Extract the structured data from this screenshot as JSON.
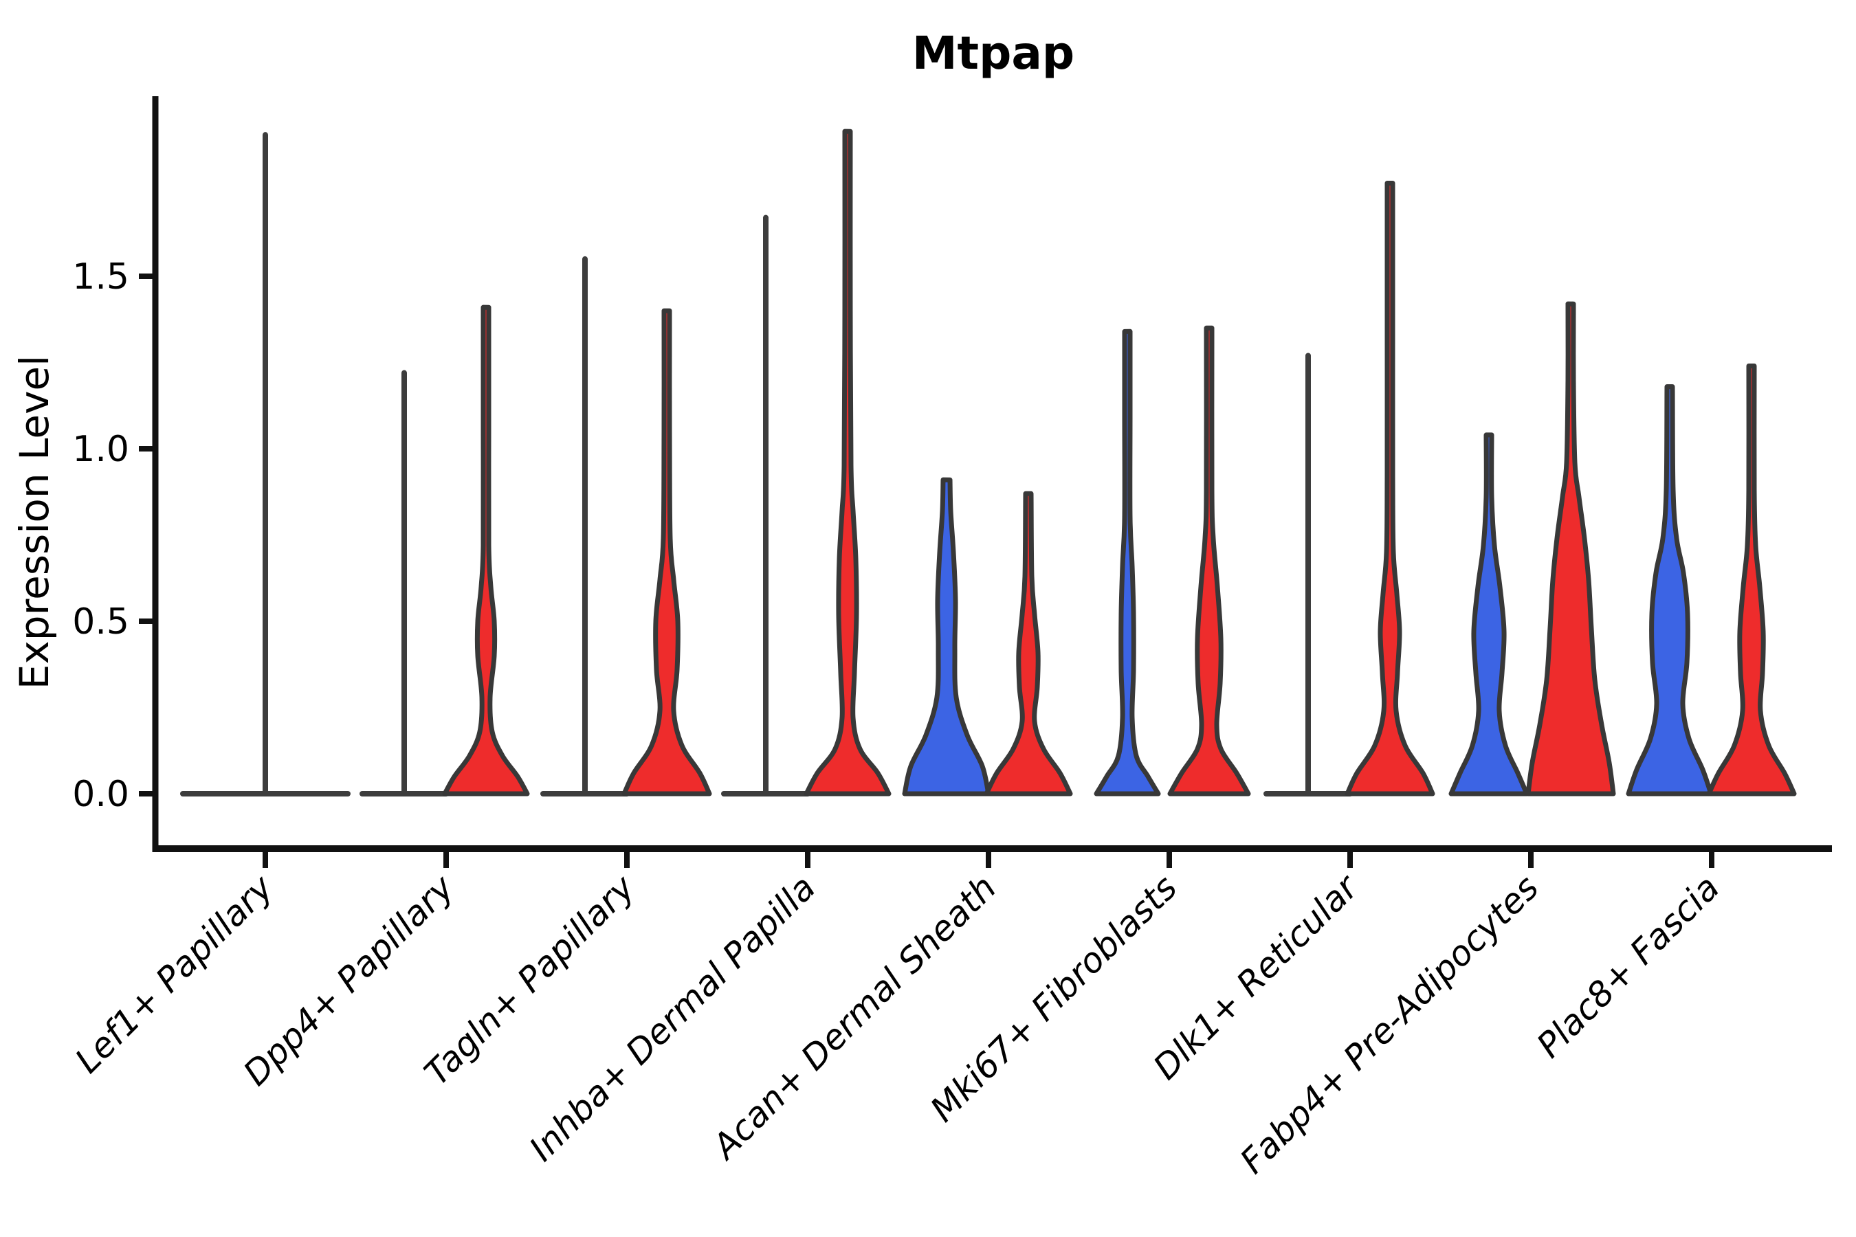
{
  "title": "Mtpap",
  "y_axis": {
    "label": "Expression Level",
    "tick_labels": [
      "0.0",
      "0.5",
      "1.0",
      "1.5"
    ],
    "tick_values": [
      0,
      0.5,
      1.0,
      1.5
    ]
  },
  "x_axis": {
    "categories": [
      "Lef1+ Papillary",
      "Dpp4+ Papillary",
      "Tagln+ Papillary",
      "Inhba+ Dermal Papilla",
      "Acan+ Dermal Sheath",
      "Mki67+ Fibroblasts",
      "Dlk1+ Reticular",
      "Fabp4+ Pre-Adipocytes",
      "Plac8+ Fascia"
    ]
  },
  "colors": {
    "red": "#EE2C2C",
    "blue": "#3C64E4",
    "outline": "#383838",
    "collapsed_line": "#3d3d3d",
    "axis": "#111111",
    "text": "#000000"
  },
  "chart_data": {
    "type": "violin",
    "title": "Mtpap",
    "ylabel": "Expression Level",
    "ylim": [
      0,
      2.0
    ],
    "yticks": [
      0,
      0.5,
      1.0,
      1.5
    ],
    "grid": false,
    "legend": "none",
    "categories": [
      "Lef1+ Papillary",
      "Dpp4+ Papillary",
      "Tagln+ Papillary",
      "Inhba+ Dermal Papilla",
      "Acan+ Dermal Sheath",
      "Mki67+ Fibroblasts",
      "Dlk1+ Reticular",
      "Fabp4+ Pre-Adipocytes",
      "Plac8+ Fascia"
    ],
    "violins": [
      {
        "category": "Lef1+ Papillary",
        "slot": "center",
        "fill": "none",
        "shape": "collapsed",
        "base_half": 120,
        "max_expression": 1.91
      },
      {
        "category": "Dpp4+ Papillary",
        "slot": "left",
        "fill": "none",
        "shape": "collapsed",
        "base_half": 61,
        "max_expression": 1.22
      },
      {
        "category": "Dpp4+ Papillary",
        "slot": "right",
        "fill": "red",
        "shape": "violin",
        "max_expression": 1.41,
        "profile": [
          [
            0,
            60
          ],
          [
            0.05,
            46
          ],
          [
            0.11,
            24
          ],
          [
            0.18,
            9
          ],
          [
            0.28,
            6
          ],
          [
            0.4,
            12
          ],
          [
            0.5,
            12
          ],
          [
            0.6,
            7
          ],
          [
            0.72,
            4
          ],
          [
            1.05,
            4
          ],
          [
            1.41,
            4
          ]
        ]
      },
      {
        "category": "Tagln+ Papillary",
        "slot": "left",
        "fill": "none",
        "shape": "collapsed",
        "base_half": 61,
        "max_expression": 1.55
      },
      {
        "category": "Tagln+ Papillary",
        "slot": "right",
        "fill": "red",
        "shape": "violin",
        "max_expression": 1.4,
        "profile": [
          [
            0,
            62
          ],
          [
            0.06,
            48
          ],
          [
            0.14,
            22
          ],
          [
            0.24,
            10
          ],
          [
            0.36,
            15
          ],
          [
            0.5,
            16
          ],
          [
            0.62,
            10
          ],
          [
            0.74,
            5
          ],
          [
            1.05,
            4
          ],
          [
            1.4,
            4
          ]
        ]
      },
      {
        "category": "Inhba+ Dermal Papilla",
        "slot": "left",
        "fill": "none",
        "shape": "collapsed",
        "base_half": 61,
        "max_expression": 1.67
      },
      {
        "category": "Inhba+ Dermal Papilla",
        "slot": "right",
        "fill": "red",
        "shape": "violin",
        "max_expression": 1.92,
        "profile": [
          [
            0,
            60
          ],
          [
            0.06,
            44
          ],
          [
            0.13,
            18
          ],
          [
            0.22,
            8
          ],
          [
            0.35,
            10
          ],
          [
            0.52,
            13
          ],
          [
            0.68,
            12
          ],
          [
            0.82,
            8
          ],
          [
            0.95,
            5
          ],
          [
            1.4,
            4
          ],
          [
            1.92,
            4
          ]
        ]
      },
      {
        "category": "Acan+ Dermal Sheath",
        "slot": "left",
        "fill": "blue",
        "shape": "violin",
        "max_expression": 0.91,
        "profile": [
          [
            0,
            61
          ],
          [
            0.08,
            52
          ],
          [
            0.17,
            30
          ],
          [
            0.28,
            14
          ],
          [
            0.42,
            12
          ],
          [
            0.56,
            13
          ],
          [
            0.7,
            10
          ],
          [
            0.82,
            6
          ],
          [
            0.91,
            5
          ]
        ]
      },
      {
        "category": "Acan+ Dermal Sheath",
        "slot": "right",
        "fill": "red",
        "shape": "violin",
        "max_expression": 0.87,
        "profile": [
          [
            0,
            61
          ],
          [
            0.06,
            46
          ],
          [
            0.13,
            22
          ],
          [
            0.21,
            9
          ],
          [
            0.31,
            13
          ],
          [
            0.41,
            14
          ],
          [
            0.52,
            9
          ],
          [
            0.63,
            5
          ],
          [
            0.87,
            4
          ]
        ]
      },
      {
        "category": "Mki67+ Fibroblasts",
        "slot": "left",
        "fill": "blue",
        "shape": "violin",
        "max_expression": 1.34,
        "profile": [
          [
            0,
            45
          ],
          [
            0.05,
            30
          ],
          [
            0.11,
            13
          ],
          [
            0.22,
            7
          ],
          [
            0.36,
            9
          ],
          [
            0.52,
            9
          ],
          [
            0.66,
            7
          ],
          [
            0.8,
            4
          ],
          [
            1.1,
            4
          ],
          [
            1.34,
            4
          ]
        ]
      },
      {
        "category": "Mki67+ Fibroblasts",
        "slot": "right",
        "fill": "red",
        "shape": "violin",
        "max_expression": 1.35,
        "profile": [
          [
            0,
            57
          ],
          [
            0.06,
            40
          ],
          [
            0.13,
            17
          ],
          [
            0.2,
            11
          ],
          [
            0.32,
            16
          ],
          [
            0.45,
            17
          ],
          [
            0.6,
            12
          ],
          [
            0.74,
            6
          ],
          [
            0.88,
            4
          ],
          [
            1.35,
            4
          ]
        ]
      },
      {
        "category": "Dlk1+ Reticular",
        "slot": "left",
        "fill": "none",
        "shape": "collapsed",
        "base_half": 61,
        "max_expression": 1.27
      },
      {
        "category": "Dlk1+ Reticular",
        "slot": "right",
        "fill": "red",
        "shape": "violin",
        "max_expression": 1.77,
        "profile": [
          [
            0,
            62
          ],
          [
            0.06,
            48
          ],
          [
            0.14,
            22
          ],
          [
            0.24,
            9
          ],
          [
            0.35,
            11
          ],
          [
            0.47,
            14
          ],
          [
            0.58,
            10
          ],
          [
            0.7,
            5
          ],
          [
            0.92,
            4
          ],
          [
            1.35,
            4
          ],
          [
            1.77,
            4
          ]
        ]
      },
      {
        "category": "Fabp4+ Pre-Adipocytes",
        "slot": "left",
        "fill": "blue",
        "shape": "violin",
        "max_expression": 1.04,
        "profile": [
          [
            0,
            55
          ],
          [
            0.06,
            42
          ],
          [
            0.14,
            24
          ],
          [
            0.24,
            15
          ],
          [
            0.35,
            19
          ],
          [
            0.47,
            22
          ],
          [
            0.6,
            16
          ],
          [
            0.72,
            8
          ],
          [
            0.86,
            4
          ],
          [
            1.04,
            4
          ]
        ]
      },
      {
        "category": "Fabp4+ Pre-Adipocytes",
        "slot": "right",
        "fill": "red",
        "shape": "violin",
        "max_expression": 1.42,
        "profile": [
          [
            0,
            62
          ],
          [
            0.09,
            56
          ],
          [
            0.2,
            45
          ],
          [
            0.33,
            35
          ],
          [
            0.48,
            30
          ],
          [
            0.62,
            26
          ],
          [
            0.74,
            20
          ],
          [
            0.86,
            12
          ],
          [
            0.96,
            6
          ],
          [
            1.2,
            4
          ],
          [
            1.42,
            4
          ]
        ]
      },
      {
        "category": "Plac8+ Fascia",
        "slot": "left",
        "fill": "blue",
        "shape": "violin",
        "max_expression": 1.18,
        "profile": [
          [
            0,
            60
          ],
          [
            0.07,
            48
          ],
          [
            0.16,
            28
          ],
          [
            0.26,
            19
          ],
          [
            0.38,
            25
          ],
          [
            0.52,
            26
          ],
          [
            0.64,
            20
          ],
          [
            0.74,
            10
          ],
          [
            0.88,
            5
          ],
          [
            1.18,
            4
          ]
        ]
      },
      {
        "category": "Plac8+ Fascia",
        "slot": "right",
        "fill": "red",
        "shape": "violin",
        "max_expression": 1.24,
        "profile": [
          [
            0,
            62
          ],
          [
            0.06,
            48
          ],
          [
            0.14,
            25
          ],
          [
            0.24,
            13
          ],
          [
            0.35,
            16
          ],
          [
            0.47,
            17
          ],
          [
            0.6,
            12
          ],
          [
            0.72,
            6
          ],
          [
            0.88,
            4
          ],
          [
            1.24,
            4
          ]
        ]
      }
    ]
  }
}
